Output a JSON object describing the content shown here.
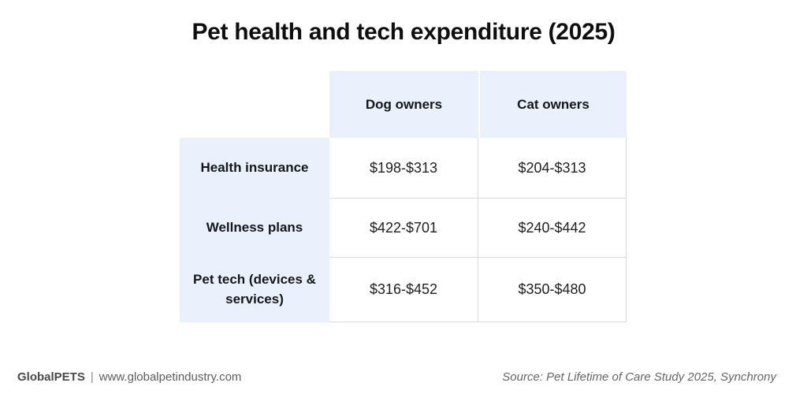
{
  "chart_data": {
    "type": "table",
    "title": "Pet health and tech expenditure (2025)",
    "columns": [
      "",
      "Dog owners",
      "Cat owners"
    ],
    "rows": [
      [
        "Health insurance",
        "$198-$313",
        "$204-$313"
      ],
      [
        "Wellness plans",
        "$422-$701",
        "$240-$442"
      ],
      [
        "Pet tech (devices & services)",
        "$316-$452",
        "$350-$480"
      ]
    ],
    "layout_hints": {
      "header_position": "top",
      "row_labels_position": "left",
      "grid": "light-gray borders on data cells only"
    }
  },
  "footer": {
    "brand": "GlobalPETS",
    "separator": "|",
    "website": "www.globalpetindustry.com",
    "source": "Source: Pet Lifetime of Care Study 2025, Synchrony"
  },
  "colors": {
    "header_bg": "#eaf1fc",
    "cell_border": "#d9d9d9",
    "title_text": "#0f0f0f",
    "footer_text": "#5d5d5d"
  }
}
